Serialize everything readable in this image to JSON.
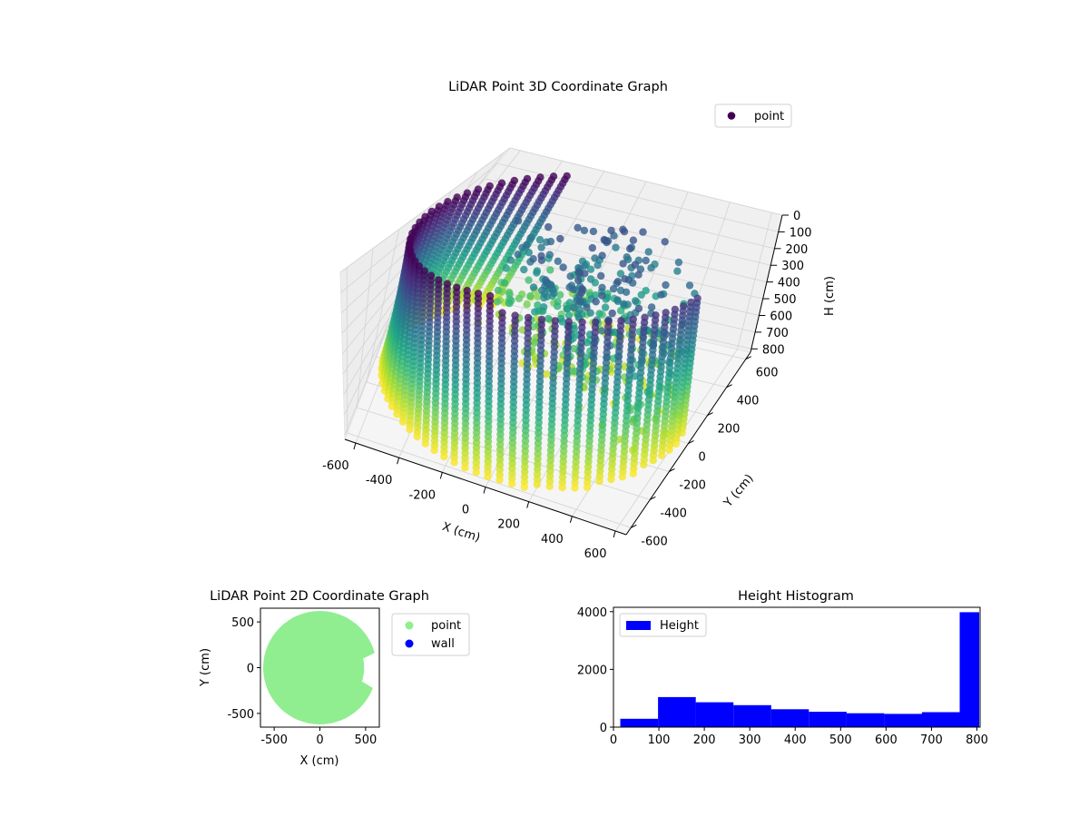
{
  "colors": {
    "viridis_dark": "#440154",
    "viridis_mid": "#21918c",
    "viridis_light": "#fde725",
    "point_2d": "#90ee90",
    "wall_2d": "#0000ff",
    "histogram_bar": "#0000ff",
    "pane_fill": "#f2f2f2",
    "grid": "#d6d6d6"
  },
  "chart_data": [
    {
      "id": "3d",
      "type": "scatter",
      "title": "LiDAR Point 3D Coordinate Graph",
      "xlabel": "X (cm)",
      "ylabel": "Y (cm)",
      "zlabel": "H (cm)",
      "x_ticks": [
        -600,
        -400,
        -200,
        0,
        200,
        400,
        600
      ],
      "y_ticks": [
        -600,
        -400,
        -200,
        0,
        200,
        400,
        600
      ],
      "z_ticks": [
        0,
        100,
        200,
        300,
        400,
        500,
        600,
        700,
        800
      ],
      "xlim": [
        -650,
        650
      ],
      "ylim": [
        -650,
        650
      ],
      "zlim": [
        820,
        0
      ],
      "z_inverted": true,
      "grid": true,
      "colormap": "viridis",
      "legend": {
        "entries": [
          "point"
        ],
        "placement": "upper-right"
      },
      "series": [
        {
          "name": "point",
          "shape": "cylindrical wall",
          "radius": 620,
          "height_range": [
            0,
            800
          ],
          "column_angle_range_deg": [
            120,
            360
          ],
          "column_angle_step_deg": 5,
          "interior_clutter_height_range": [
            200,
            780
          ]
        }
      ]
    },
    {
      "id": "2d",
      "type": "scatter",
      "title": "LiDAR Point 2D Coordinate Graph",
      "xlabel": "X (cm)",
      "ylabel": "Y (cm)",
      "x_ticks": [
        -500,
        0,
        500
      ],
      "y_ticks": [
        -500,
        0,
        500
      ],
      "xlim": [
        -650,
        650
      ],
      "ylim": [
        -650,
        650
      ],
      "legend": {
        "entries": [
          "point",
          "wall"
        ],
        "placement": "outside-right"
      },
      "series": [
        {
          "name": "point",
          "shape": "filled disc",
          "radius": 620,
          "missing_sector_deg": [
            -20,
            15
          ]
        },
        {
          "name": "wall",
          "values": []
        }
      ]
    },
    {
      "id": "hist",
      "type": "bar",
      "title": "Height Histogram",
      "xlabel": "",
      "ylabel": "",
      "x_ticks": [
        0,
        100,
        200,
        300,
        400,
        500,
        600,
        700,
        800
      ],
      "y_ticks": [
        0,
        2000,
        4000
      ],
      "xlim": [
        0,
        807
      ],
      "ylim": [
        0,
        4150
      ],
      "legend": {
        "entries": [
          "Height"
        ],
        "placement": "upper-left"
      },
      "bins": [
        [
          15,
          98
        ],
        [
          98,
          181
        ],
        [
          181,
          264
        ],
        [
          264,
          347
        ],
        [
          347,
          430
        ],
        [
          430,
          513
        ],
        [
          513,
          596
        ],
        [
          596,
          679
        ],
        [
          679,
          762
        ],
        [
          762,
          805
        ]
      ],
      "values": [
        290,
        1040,
        860,
        760,
        620,
        530,
        480,
        460,
        520,
        3980
      ]
    }
  ]
}
